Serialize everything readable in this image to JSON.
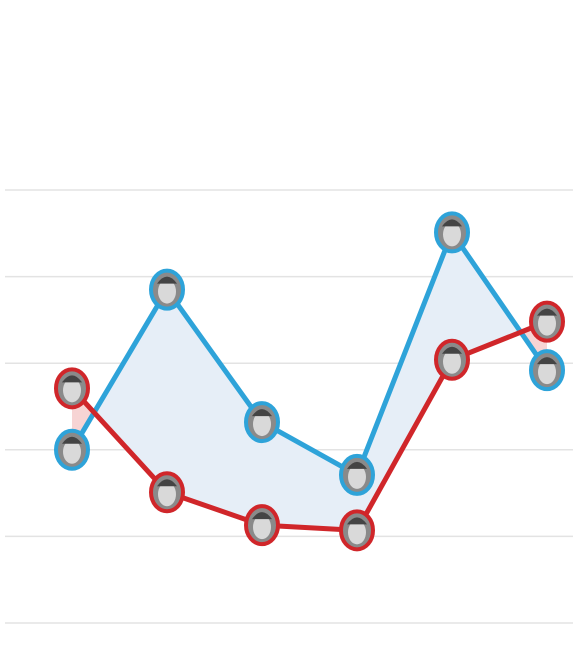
{
  "chart_data": {
    "type": "line",
    "categories": [
      null,
      null,
      null,
      null,
      null,
      null
    ],
    "series": [
      {
        "color": "#2ea3d9",
        "values": [
          2.0,
          3.85,
          2.32,
          1.71,
          4.51,
          2.92
        ]
      },
      {
        "color": "#d0262a",
        "values": [
          2.71,
          1.51,
          1.13,
          1.07,
          3.04,
          3.48
        ]
      }
    ],
    "ylim": [
      0,
      5
    ],
    "yticks": [
      0,
      1,
      2,
      3,
      4,
      5
    ],
    "grid": true
  }
}
